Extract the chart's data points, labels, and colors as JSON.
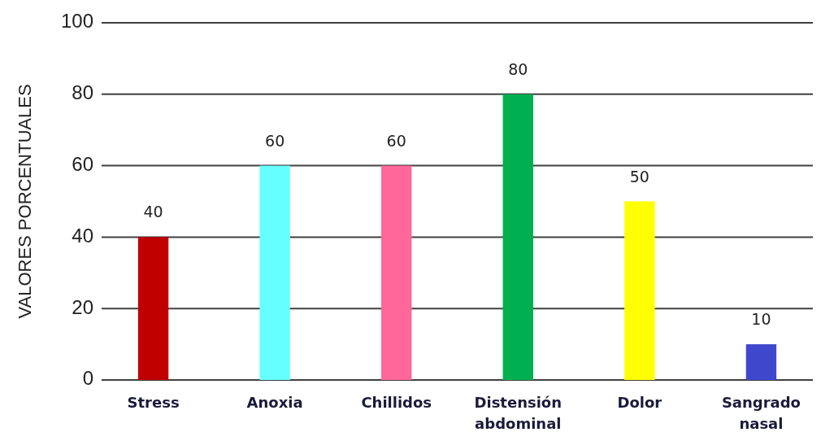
{
  "chart_data": {
    "type": "bar",
    "ylabel": "VALORES PORCENTUALES",
    "categories": [
      "Stress",
      "Anoxia",
      "Chillidos",
      "Distensión abdominal",
      "Dolor",
      "Sangrado nasal"
    ],
    "values": [
      40,
      60,
      60,
      80,
      50,
      10
    ],
    "colors": [
      "#c00000",
      "#66ffff",
      "#ff6699",
      "#00b050",
      "#ffff00",
      "#3f48cc"
    ],
    "ylim": [
      0,
      100
    ],
    "yticks": [
      0,
      20,
      40,
      60,
      80,
      100
    ],
    "grid": "y",
    "data_labels": true
  }
}
